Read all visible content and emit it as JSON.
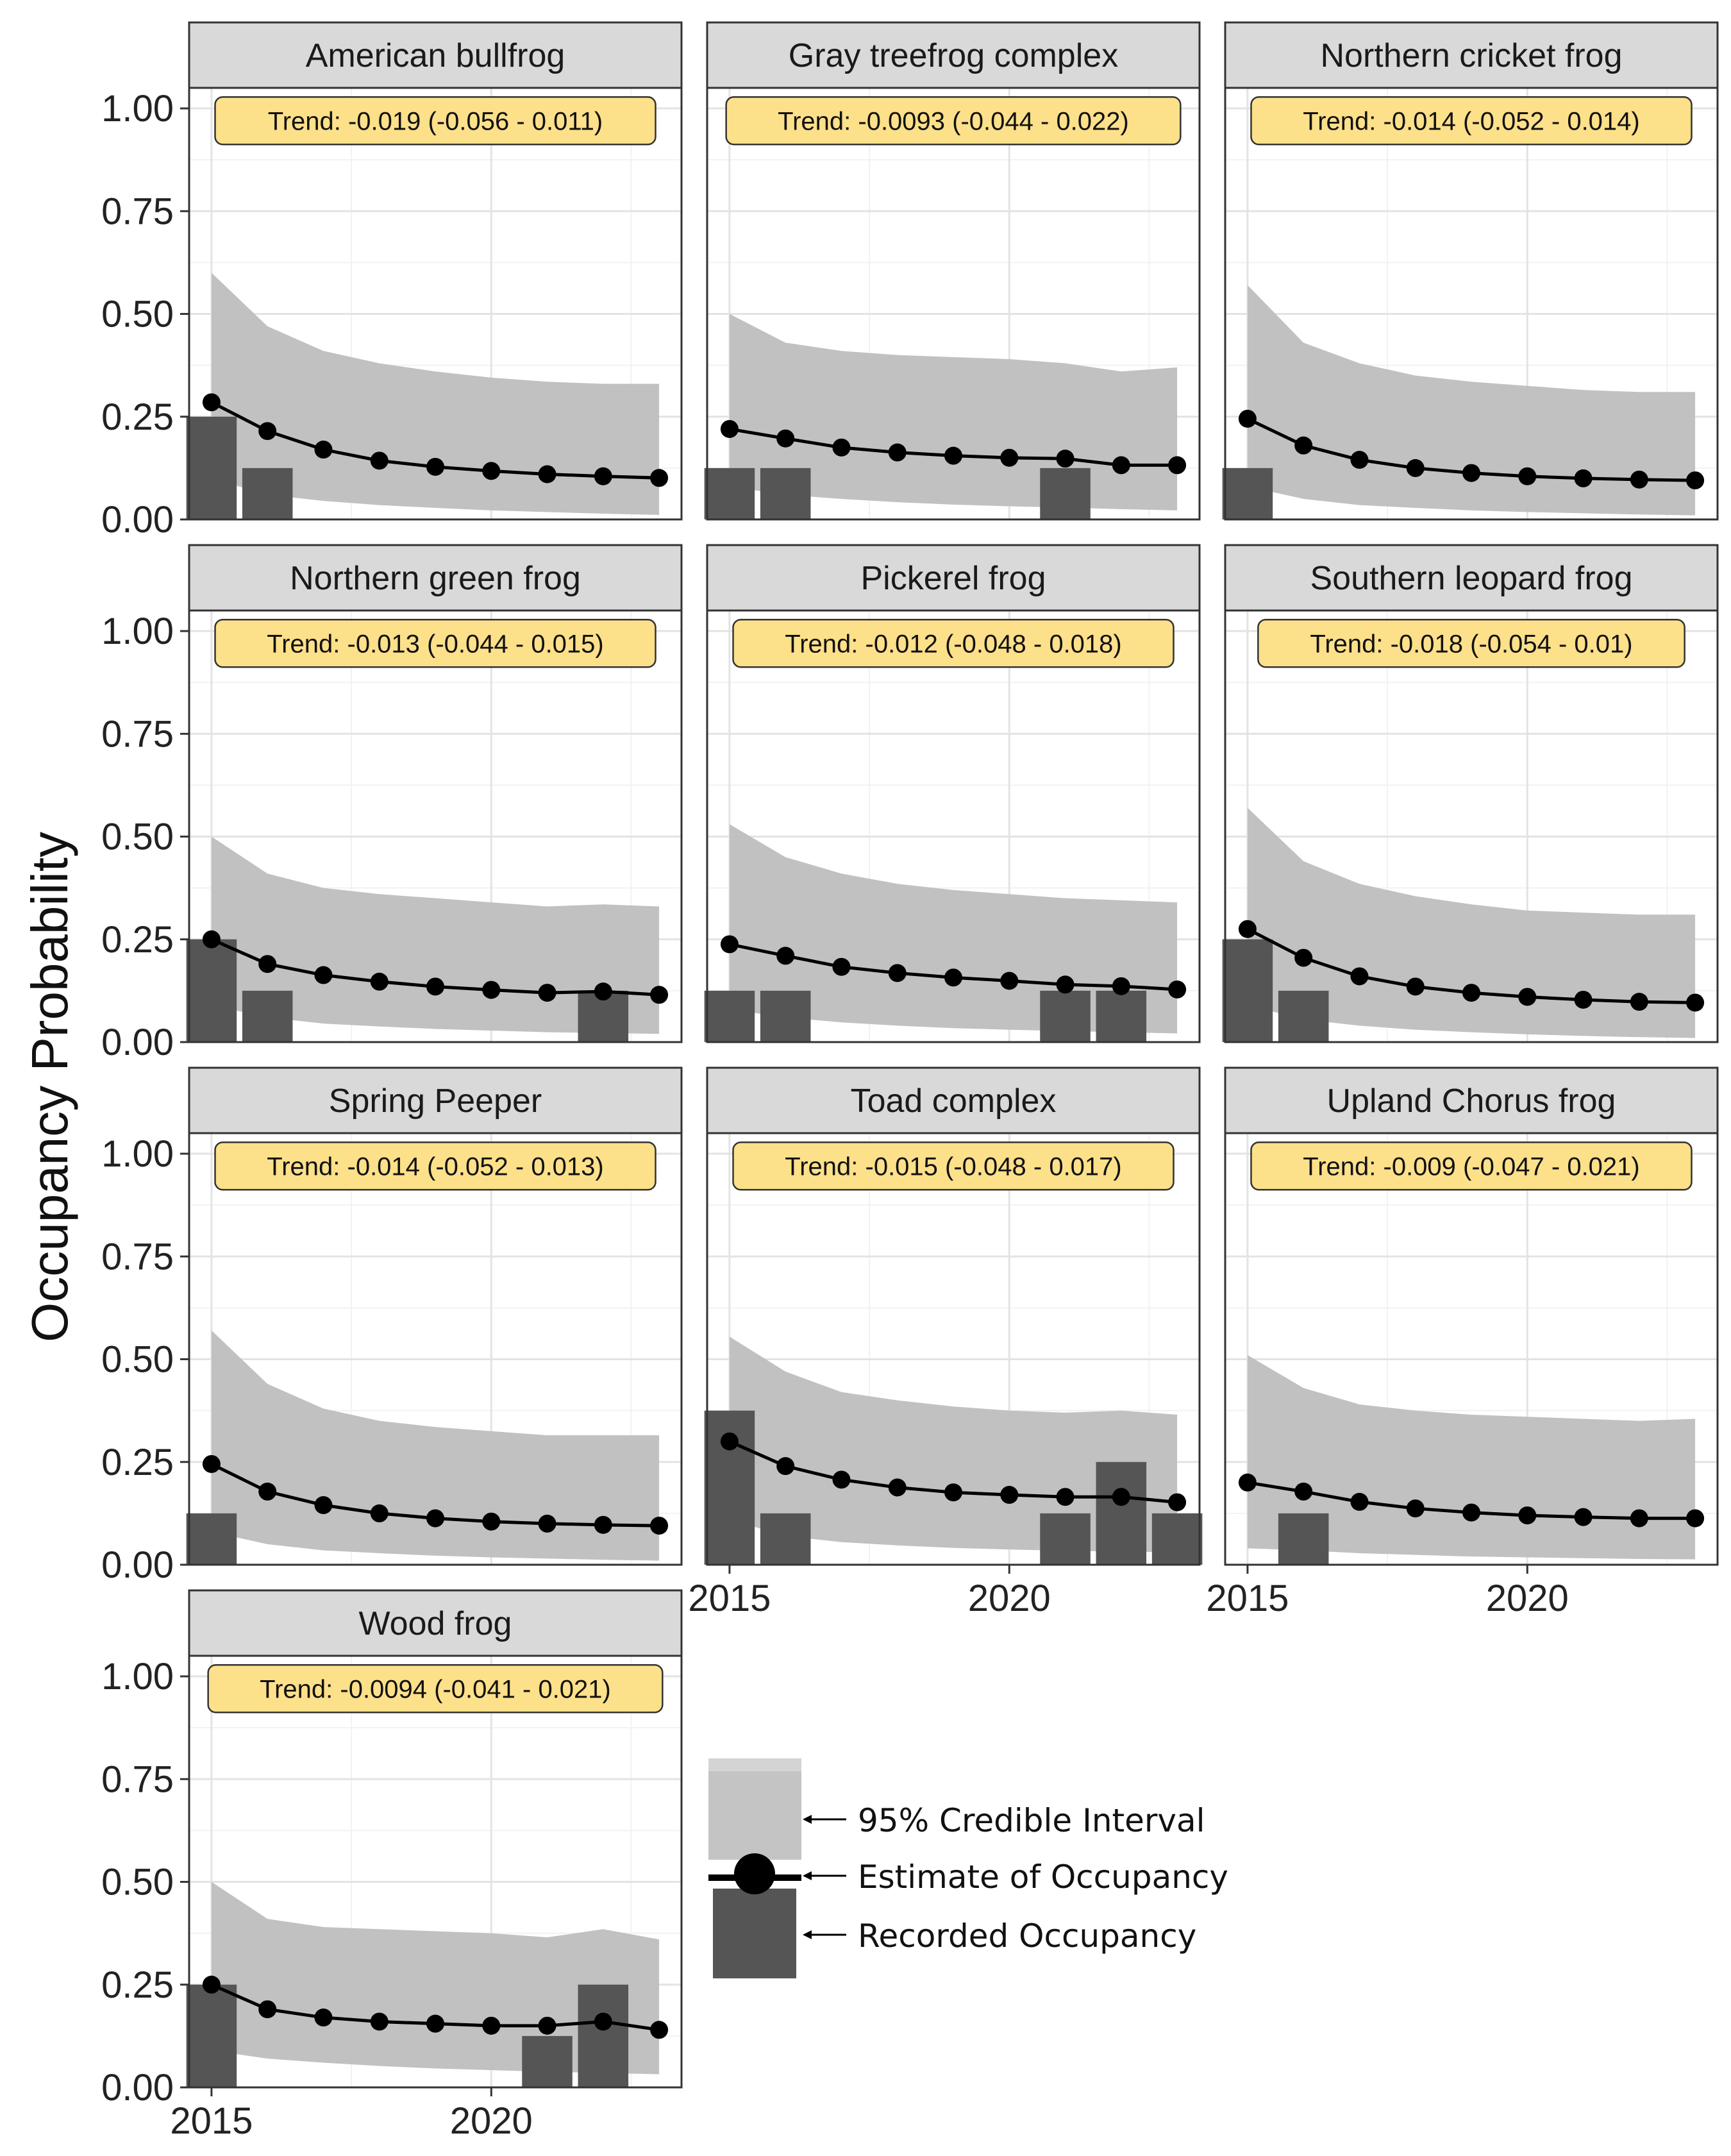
{
  "colors": {
    "ribbon": "#bebebe",
    "bar": "#555555",
    "line": "#000000",
    "strip_fill": "#d9d9d9",
    "trend_fill": "#fde08a",
    "grid_major": "#e3e3e3",
    "grid_minor": "#f2f2f2"
  },
  "chart_data": {
    "type": "faceted line + ribbon + bar",
    "ylabel": "Occupancy Probability",
    "xlabel": "",
    "ylim": [
      0,
      1.05
    ],
    "xlim": [
      2014.6,
      2023.4
    ],
    "y_ticks": [
      "0.00",
      "0.25",
      "0.50",
      "0.75",
      "1.00"
    ],
    "x_ticks": [
      "2015",
      "2020"
    ],
    "years": [
      2015,
      2016,
      2017,
      2018,
      2019,
      2020,
      2021,
      2022,
      2023
    ],
    "legend": {
      "ribbon_label": "95% Credible Interval",
      "estimate_label": "Estimate of Occupancy",
      "recorded_label": "Recorded Occupancy"
    },
    "panels": [
      {
        "name": "American bullfrog",
        "trend": "Trend: -0.019 (-0.056 - 0.011)",
        "estimate": [
          0.285,
          0.215,
          0.17,
          0.143,
          0.128,
          0.118,
          0.11,
          0.105,
          0.101
        ],
        "lower": [
          0.1,
          0.06,
          0.045,
          0.035,
          0.028,
          0.022,
          0.018,
          0.014,
          0.011
        ],
        "upper": [
          0.6,
          0.47,
          0.41,
          0.38,
          0.36,
          0.345,
          0.335,
          0.33,
          0.33
        ],
        "recorded": [
          [
            2015,
            0.25
          ],
          [
            2016,
            0.125
          ]
        ]
      },
      {
        "name": "Gray treefrog complex",
        "trend": "Trend: -0.0093 (-0.044 - 0.022)",
        "estimate": [
          0.22,
          0.197,
          0.175,
          0.163,
          0.155,
          0.15,
          0.148,
          0.132,
          0.132
        ],
        "lower": [
          0.08,
          0.06,
          0.05,
          0.042,
          0.036,
          0.032,
          0.029,
          0.025,
          0.022
        ],
        "upper": [
          0.5,
          0.43,
          0.41,
          0.4,
          0.395,
          0.39,
          0.38,
          0.36,
          0.37
        ],
        "recorded": [
          [
            2015,
            0.125
          ],
          [
            2016,
            0.125
          ],
          [
            2021,
            0.125
          ]
        ]
      },
      {
        "name": "Northern cricket frog",
        "trend": "Trend: -0.014 (-0.052 - 0.014)",
        "estimate": [
          0.245,
          0.18,
          0.145,
          0.125,
          0.113,
          0.105,
          0.1,
          0.097,
          0.095
        ],
        "lower": [
          0.08,
          0.05,
          0.035,
          0.028,
          0.022,
          0.018,
          0.015,
          0.012,
          0.01
        ],
        "upper": [
          0.57,
          0.43,
          0.38,
          0.35,
          0.335,
          0.325,
          0.315,
          0.31,
          0.31
        ],
        "recorded": [
          [
            2015,
            0.125
          ]
        ]
      },
      {
        "name": "Northern green frog",
        "trend": "Trend: -0.013 (-0.044 - 0.015)",
        "estimate": [
          0.25,
          0.19,
          0.163,
          0.147,
          0.135,
          0.127,
          0.12,
          0.123,
          0.115
        ],
        "lower": [
          0.09,
          0.06,
          0.045,
          0.038,
          0.032,
          0.028,
          0.024,
          0.022,
          0.02
        ],
        "upper": [
          0.5,
          0.41,
          0.375,
          0.36,
          0.35,
          0.34,
          0.33,
          0.335,
          0.33
        ],
        "recorded": [
          [
            2015,
            0.25
          ],
          [
            2016,
            0.125
          ],
          [
            2022,
            0.125
          ]
        ]
      },
      {
        "name": "Pickerel frog",
        "trend": "Trend: -0.012 (-0.048 - 0.018)",
        "estimate": [
          0.238,
          0.21,
          0.183,
          0.168,
          0.157,
          0.149,
          0.14,
          0.136,
          0.128
        ],
        "lower": [
          0.08,
          0.06,
          0.048,
          0.04,
          0.034,
          0.03,
          0.027,
          0.024,
          0.021
        ],
        "upper": [
          0.53,
          0.45,
          0.41,
          0.385,
          0.37,
          0.36,
          0.35,
          0.345,
          0.34
        ],
        "recorded": [
          [
            2015,
            0.125
          ],
          [
            2016,
            0.125
          ],
          [
            2021,
            0.125
          ],
          [
            2022,
            0.125
          ]
        ]
      },
      {
        "name": "Southern leopard frog",
        "trend": "Trend: -0.018 (-0.054 - 0.01)",
        "estimate": [
          0.275,
          0.205,
          0.16,
          0.135,
          0.12,
          0.11,
          0.103,
          0.098,
          0.096
        ],
        "lower": [
          0.09,
          0.055,
          0.04,
          0.03,
          0.024,
          0.019,
          0.015,
          0.012,
          0.01
        ],
        "upper": [
          0.57,
          0.44,
          0.385,
          0.355,
          0.335,
          0.32,
          0.315,
          0.31,
          0.31
        ],
        "recorded": [
          [
            2015,
            0.25
          ],
          [
            2016,
            0.125
          ]
        ]
      },
      {
        "name": "Spring Peeper",
        "trend": "Trend: -0.014 (-0.052 - 0.013)",
        "estimate": [
          0.245,
          0.178,
          0.145,
          0.125,
          0.113,
          0.105,
          0.1,
          0.097,
          0.095
        ],
        "lower": [
          0.08,
          0.05,
          0.035,
          0.028,
          0.022,
          0.018,
          0.015,
          0.012,
          0.01
        ],
        "upper": [
          0.57,
          0.44,
          0.38,
          0.35,
          0.335,
          0.325,
          0.315,
          0.315,
          0.315
        ],
        "recorded": [
          [
            2015,
            0.125
          ]
        ]
      },
      {
        "name": "Toad complex",
        "trend": "Trend: -0.015 (-0.048 - 0.017)",
        "estimate": [
          0.3,
          0.24,
          0.207,
          0.188,
          0.176,
          0.17,
          0.165,
          0.165,
          0.152
        ],
        "lower": [
          0.11,
          0.07,
          0.055,
          0.047,
          0.041,
          0.037,
          0.034,
          0.032,
          0.03
        ],
        "upper": [
          0.555,
          0.47,
          0.42,
          0.4,
          0.385,
          0.375,
          0.37,
          0.375,
          0.365
        ],
        "recorded": [
          [
            2015,
            0.375
          ],
          [
            2016,
            0.125
          ],
          [
            2021,
            0.125
          ],
          [
            2022,
            0.25
          ],
          [
            2023,
            0.125
          ]
        ]
      },
      {
        "name": "Upland Chorus frog",
        "trend": "Trend: -0.009 (-0.047 - 0.021)",
        "estimate": [
          0.2,
          0.178,
          0.153,
          0.137,
          0.127,
          0.12,
          0.116,
          0.113,
          0.113
        ],
        "lower": [
          0.04,
          0.035,
          0.028,
          0.024,
          0.02,
          0.018,
          0.016,
          0.014,
          0.013
        ],
        "upper": [
          0.51,
          0.43,
          0.39,
          0.375,
          0.365,
          0.36,
          0.355,
          0.35,
          0.355
        ],
        "recorded": [
          [
            2016,
            0.125
          ]
        ]
      },
      {
        "name": "Wood frog",
        "trend": "Trend: -0.0094 (-0.041 - 0.021)",
        "estimate": [
          0.25,
          0.19,
          0.17,
          0.16,
          0.155,
          0.15,
          0.15,
          0.16,
          0.14
        ],
        "lower": [
          0.09,
          0.07,
          0.06,
          0.052,
          0.046,
          0.042,
          0.038,
          0.035,
          0.032
        ],
        "upper": [
          0.5,
          0.41,
          0.39,
          0.385,
          0.38,
          0.375,
          0.365,
          0.385,
          0.36
        ],
        "recorded": [
          [
            2015,
            0.25
          ],
          [
            2021,
            0.125
          ],
          [
            2022,
            0.25
          ]
        ]
      }
    ]
  }
}
